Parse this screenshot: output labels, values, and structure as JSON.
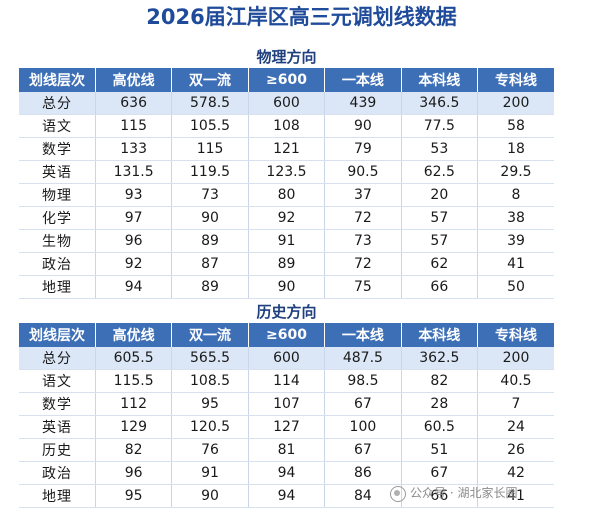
{
  "title": "2026届江岸区高三元调划线数据",
  "columns": [
    "划线层次",
    "高优线",
    "双一流",
    "≥600",
    "一本线",
    "本科线",
    "专科线"
  ],
  "physics": {
    "section_title": "物理方向",
    "rows": [
      {
        "label": "总分",
        "values": [
          "636",
          "578.5",
          "600",
          "439",
          "346.5",
          "200"
        ]
      },
      {
        "label": "语文",
        "values": [
          "115",
          "105.5",
          "108",
          "90",
          "77.5",
          "58"
        ]
      },
      {
        "label": "数学",
        "values": [
          "133",
          "115",
          "121",
          "79",
          "53",
          "18"
        ]
      },
      {
        "label": "英语",
        "values": [
          "131.5",
          "119.5",
          "123.5",
          "90.5",
          "62.5",
          "29.5"
        ]
      },
      {
        "label": "物理",
        "values": [
          "93",
          "73",
          "80",
          "37",
          "20",
          "8"
        ]
      },
      {
        "label": "化学",
        "values": [
          "97",
          "90",
          "92",
          "72",
          "57",
          "38"
        ]
      },
      {
        "label": "生物",
        "values": [
          "96",
          "89",
          "91",
          "73",
          "57",
          "39"
        ]
      },
      {
        "label": "政治",
        "values": [
          "92",
          "87",
          "89",
          "72",
          "62",
          "41"
        ]
      },
      {
        "label": "地理",
        "values": [
          "94",
          "89",
          "90",
          "75",
          "66",
          "50"
        ]
      }
    ]
  },
  "history": {
    "section_title": "历史方向",
    "rows": [
      {
        "label": "总分",
        "values": [
          "605.5",
          "565.5",
          "600",
          "487.5",
          "362.5",
          "200"
        ]
      },
      {
        "label": "语文",
        "values": [
          "115.5",
          "108.5",
          "114",
          "98.5",
          "82",
          "40.5"
        ]
      },
      {
        "label": "数学",
        "values": [
          "112",
          "95",
          "107",
          "67",
          "28",
          "7"
        ]
      },
      {
        "label": "英语",
        "values": [
          "129",
          "120.5",
          "127",
          "100",
          "60.5",
          "24"
        ]
      },
      {
        "label": "历史",
        "values": [
          "82",
          "76",
          "81",
          "67",
          "51",
          "26"
        ]
      },
      {
        "label": "政治",
        "values": [
          "96",
          "91",
          "94",
          "86",
          "67",
          "42"
        ]
      },
      {
        "label": "地理",
        "values": [
          "95",
          "90",
          "94",
          "84",
          "66",
          "41"
        ]
      }
    ]
  },
  "watermark": {
    "text": "公众号 · 湖北家长圈",
    "icon": "wechat-icon"
  }
}
